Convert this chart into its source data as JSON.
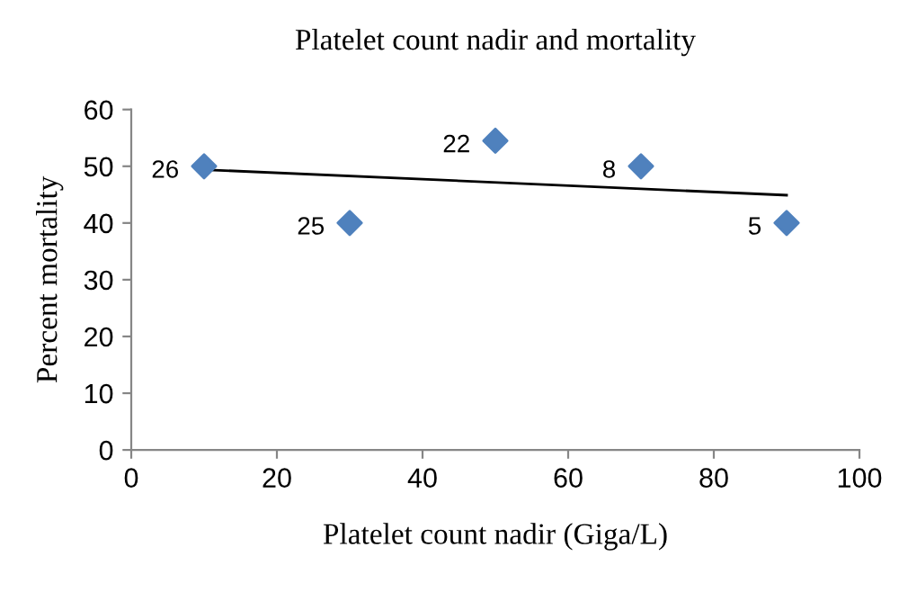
{
  "chart_data": {
    "type": "scatter",
    "title": "Platelet count nadir and mortality",
    "xlabel": "Platelet count nadir (Giga/L)",
    "ylabel": "Percent mortality",
    "xlim": [
      0,
      100
    ],
    "xticks": [
      0,
      20,
      40,
      60,
      80,
      100
    ],
    "ylim": [
      0,
      60
    ],
    "yticks": [
      0,
      10,
      20,
      30,
      40,
      50,
      60
    ],
    "grid": false,
    "legend": false,
    "marker": "diamond",
    "series": [
      {
        "color": "#4f81bd",
        "x": [
          10,
          30,
          50,
          70,
          90
        ],
        "values": [
          50,
          40,
          54.5,
          50,
          40
        ]
      },
      {
        "type": "line",
        "color": "#000000",
        "x": [
          10,
          90
        ],
        "values": [
          49.4,
          44.9
        ],
        "marker": "none",
        "line_style": "solid"
      }
    ],
    "annotations": [
      {
        "text": "26",
        "x": 10,
        "y": 50
      },
      {
        "text": "25",
        "x": 30,
        "y": 40
      },
      {
        "text": "22",
        "x": 50,
        "y": 54.5
      },
      {
        "text": "8",
        "x": 70,
        "y": 50
      },
      {
        "text": "5",
        "x": 90,
        "y": 40
      }
    ]
  }
}
